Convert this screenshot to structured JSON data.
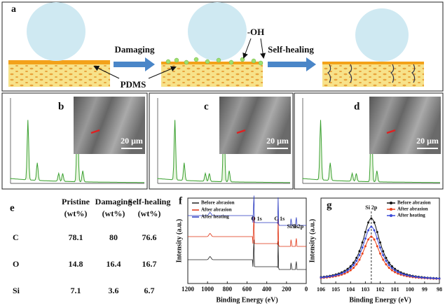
{
  "panel_a": {
    "label": "a",
    "step_1": "Damaging",
    "step_2": "Self-healing",
    "hydroxyl": "-OH",
    "polymer": "PDMS"
  },
  "eds_panels": [
    {
      "label": "b",
      "scale_bar": "20 μm"
    },
    {
      "label": "c",
      "scale_bar": "20 μm"
    },
    {
      "label": "d",
      "scale_bar": "20 μm"
    }
  ],
  "table": {
    "label": "e",
    "columns": [
      {
        "name": "Pristine",
        "unit": "(wt%)"
      },
      {
        "name": "Damaging",
        "unit": "(wt%)"
      },
      {
        "name": "Self-healing",
        "unit": "(wt%)"
      }
    ],
    "rows": [
      {
        "element": "C",
        "values": [
          78.1,
          80,
          76.6
        ]
      },
      {
        "element": "O",
        "values": [
          14.8,
          16.4,
          16.7
        ]
      },
      {
        "element": "Si",
        "values": [
          7.1,
          3.6,
          6.7
        ]
      }
    ]
  },
  "survey": {
    "label": "f",
    "x_title": "Binding Energy (eV)",
    "y_title": "Intensity (a.u.)",
    "xlim": [
      1200,
      0
    ],
    "xticks": [
      1200,
      1000,
      800,
      600,
      400,
      200,
      0
    ],
    "series": [
      {
        "name": "Before abrasion",
        "color": "#222222"
      },
      {
        "name": "After abrasion",
        "color": "#e03010"
      },
      {
        "name": "After heating",
        "color": "#2a3ac0"
      }
    ],
    "peaks": [
      {
        "label": "O 1s",
        "x": 532
      },
      {
        "label": "C 1s",
        "x": 285
      },
      {
        "label": "Si 2s",
        "x": 153
      },
      {
        "label": "Si 2p",
        "x": 102
      }
    ]
  },
  "si2p": {
    "label": "g",
    "x_title": "Binding Energy (eV)",
    "y_title": "Intensity (a.u.)",
    "xlim": [
      106,
      98
    ],
    "xticks": [
      106,
      105,
      104,
      103,
      102,
      101,
      100,
      99,
      98
    ],
    "series": [
      {
        "name": "Before abrasion",
        "color": "#111111"
      },
      {
        "name": "After abrasion",
        "color": "#e8401a"
      },
      {
        "name": "After heating",
        "color": "#3a4ad8"
      }
    ],
    "marker_label": "Si 2p",
    "marker_x": 102.6
  }
}
